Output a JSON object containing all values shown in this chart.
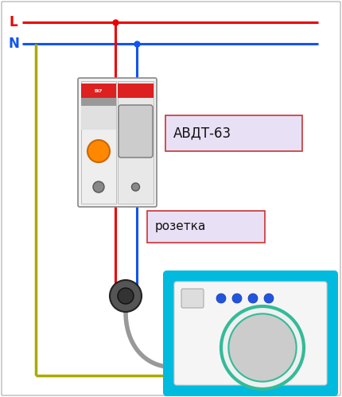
{
  "fig_width": 4.3,
  "fig_height": 4.99,
  "dpi": 100,
  "bg_color": "#ffffff",
  "border_color": "#bbbbbb",
  "L_label": "L",
  "N_label": "N",
  "label1": "АВДТ-63",
  "label2": "розетка",
  "wire_red": "#ee0000",
  "wire_blue": "#1155ee",
  "wire_yellow": "#aaaa00",
  "wire_gray": "#999999",
  "label_bg": "#e8e0f5",
  "label_border": "#cc3333",
  "washer_outer": "#00bbdd",
  "washer_drum_color": "#33bb99",
  "washer_drum_inner": "#cccccc",
  "dot_color": "#2255dd"
}
